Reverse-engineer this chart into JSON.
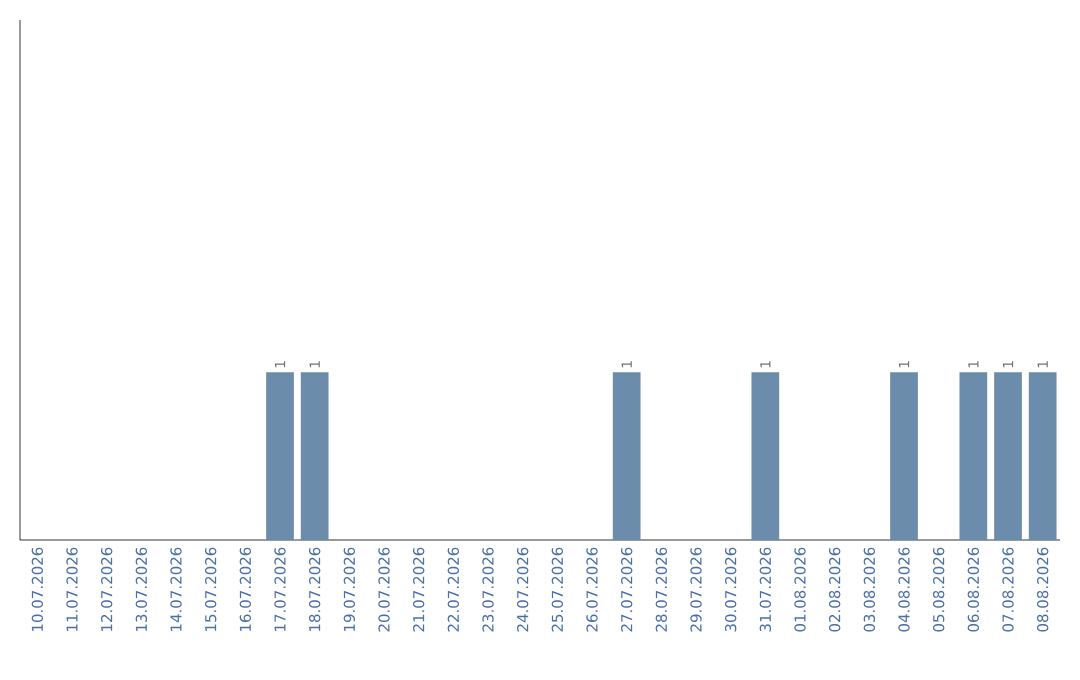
{
  "chart_data": {
    "type": "bar",
    "categories": [
      "10.07.2026",
      "11.07.2026",
      "12.07.2026",
      "13.07.2026",
      "14.07.2026",
      "15.07.2026",
      "16.07.2026",
      "17.07.2026",
      "18.07.2026",
      "19.07.2026",
      "20.07.2026",
      "21.07.2026",
      "22.07.2026",
      "23.07.2026",
      "24.07.2026",
      "25.07.2026",
      "26.07.2026",
      "27.07.2026",
      "28.07.2026",
      "29.07.2026",
      "30.07.2026",
      "31.07.2026",
      "01.08.2026",
      "02.08.2026",
      "03.08.2026",
      "04.08.2026",
      "05.08.2026",
      "06.08.2026",
      "07.08.2026",
      "08.08.2026"
    ],
    "values": [
      0,
      0,
      0,
      0,
      0,
      0,
      0,
      1,
      1,
      0,
      0,
      0,
      0,
      0,
      0,
      0,
      0,
      1,
      0,
      0,
      0,
      1,
      0,
      0,
      0,
      1,
      0,
      1,
      1,
      1
    ],
    "value_labels": [
      null,
      null,
      null,
      null,
      null,
      null,
      null,
      "1",
      "1",
      null,
      null,
      null,
      null,
      null,
      null,
      null,
      null,
      "1",
      null,
      null,
      null,
      "1",
      null,
      null,
      null,
      "1",
      null,
      "1",
      "1",
      "1"
    ],
    "color": "#6b8cab",
    "ylim": [
      0,
      3.1
    ],
    "tick_labels": "x",
    "grid": false
  }
}
